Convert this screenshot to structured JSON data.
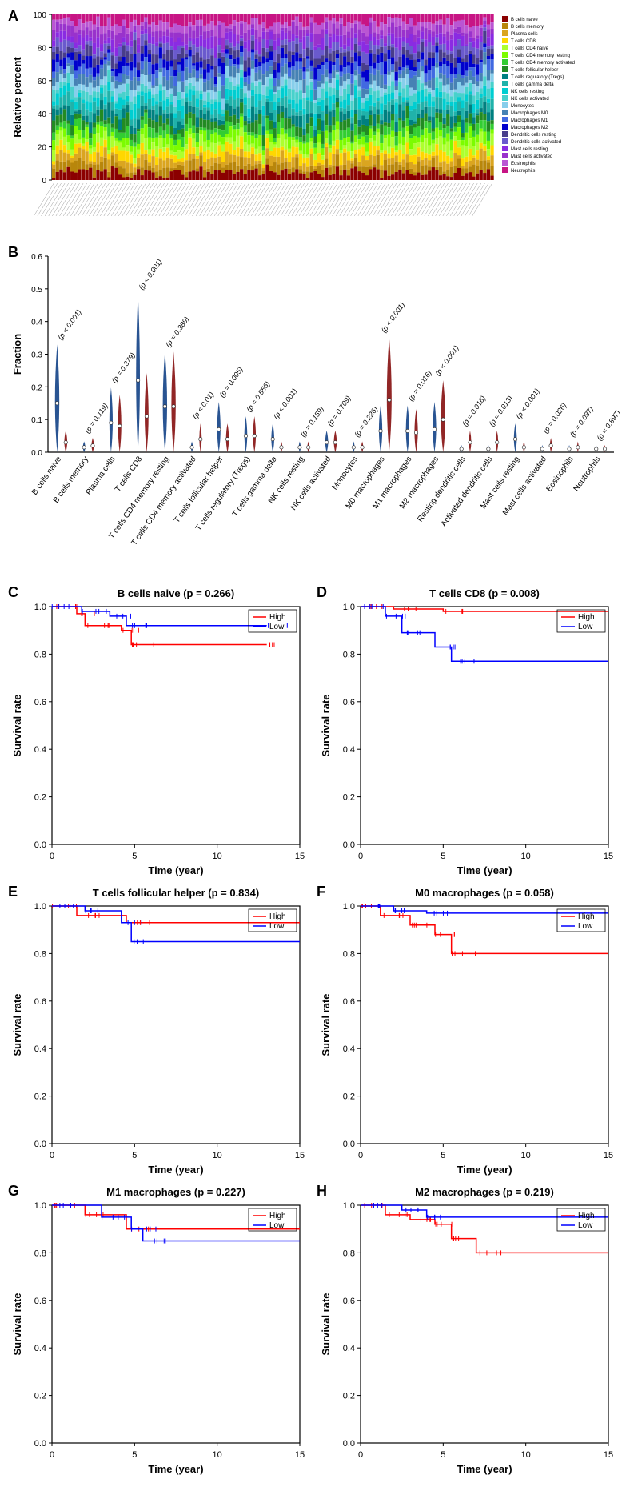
{
  "panelA": {
    "label": "A",
    "type": "stacked-bar",
    "ylabel": "Relative percent",
    "ylim": [
      0,
      100
    ],
    "ytick_step": 20,
    "n_samples": 120,
    "legend": [
      {
        "label": "B cells naive",
        "color": "#8b0000"
      },
      {
        "label": "B cells memory",
        "color": "#b8860b"
      },
      {
        "label": "Plasma cells",
        "color": "#daa520"
      },
      {
        "label": "T cells CD8",
        "color": "#ffd700"
      },
      {
        "label": "T cells CD4 naive",
        "color": "#adff2f"
      },
      {
        "label": "T cells CD4 memory resting",
        "color": "#7cfc00"
      },
      {
        "label": "T cells CD4 memory activated",
        "color": "#32cd32"
      },
      {
        "label": "T cells follicular helper",
        "color": "#228b22"
      },
      {
        "label": "T cells regulatory (Tregs)",
        "color": "#008080"
      },
      {
        "label": "T cells gamma delta",
        "color": "#20b2aa"
      },
      {
        "label": "NK cells resting",
        "color": "#00ced1"
      },
      {
        "label": "NK cells activated",
        "color": "#48d1cc"
      },
      {
        "label": "Monocytes",
        "color": "#87ceeb"
      },
      {
        "label": "Macrophages M0",
        "color": "#4682b4"
      },
      {
        "label": "Macrophages M1",
        "color": "#4169e1"
      },
      {
        "label": "Macrophages M2",
        "color": "#0000cd"
      },
      {
        "label": "Dendritic cells resting",
        "color": "#483d8b"
      },
      {
        "label": "Dendritic cells activated",
        "color": "#6a5acd"
      },
      {
        "label": "Mast cells resting",
        "color": "#8a2be2"
      },
      {
        "label": "Mast cells activated",
        "color": "#9932cc"
      },
      {
        "label": "Eosinophils",
        "color": "#ba55d3"
      },
      {
        "label": "Neutrophils",
        "color": "#c71585"
      }
    ],
    "label_fontsize": 6,
    "tick_fontsize": 10,
    "ylabel_fontsize": 13
  },
  "panelB": {
    "label": "B",
    "type": "violin",
    "ylabel": "Fraction",
    "ylim": [
      0,
      0.6
    ],
    "yticks": [
      0,
      0.1,
      0.2,
      0.3,
      0.4,
      0.5,
      0.6
    ],
    "colors": {
      "group1": "#1e4b8c",
      "group2": "#8b1a1a"
    },
    "items": [
      {
        "name": "B cells naive",
        "p": "< 0.001",
        "m1": 0.15,
        "m2": 0.03,
        "w1": 18,
        "w2": 12
      },
      {
        "name": "B cells memory",
        "p": "= 0.119",
        "m1": 0.015,
        "m2": 0.02,
        "w1": 10,
        "w2": 10
      },
      {
        "name": "Plasma cells",
        "p": "= 0.379",
        "m1": 0.09,
        "m2": 0.08,
        "w1": 14,
        "w2": 14
      },
      {
        "name": "T cells CD8",
        "p": "< 0.001",
        "m1": 0.22,
        "m2": 0.11,
        "w1": 16,
        "w2": 16
      },
      {
        "name": "T cells CD4 memory resting",
        "p": "= 0.389",
        "m1": 0.14,
        "m2": 0.14,
        "w1": 18,
        "w2": 18
      },
      {
        "name": "T cells CD4 memory activated",
        "p": "< 0.01",
        "m1": 0.015,
        "m2": 0.04,
        "w1": 8,
        "w2": 10
      },
      {
        "name": "T cells follicular helper",
        "p": "= 0.005",
        "m1": 0.07,
        "m2": 0.04,
        "w1": 14,
        "w2": 12
      },
      {
        "name": "T cells regulatory (Tregs)",
        "p": "= 0.556",
        "m1": 0.05,
        "m2": 0.05,
        "w1": 12,
        "w2": 12
      },
      {
        "name": "T cells gamma delta",
        "p": "< 0.001",
        "m1": 0.04,
        "m2": 0.015,
        "w1": 12,
        "w2": 8
      },
      {
        "name": "NK cells resting",
        "p": "= 0.159",
        "m1": 0.015,
        "m2": 0.015,
        "w1": 8,
        "w2": 8
      },
      {
        "name": "NK cells activated",
        "p": "= 0.709",
        "m1": 0.03,
        "m2": 0.03,
        "w1": 12,
        "w2": 12
      },
      {
        "name": "Monocytes",
        "p": "= 0.226",
        "m1": 0.015,
        "m2": 0.015,
        "w1": 8,
        "w2": 8
      },
      {
        "name": "M0 macrophages",
        "p": "< 0.001",
        "m1": 0.065,
        "m2": 0.16,
        "w1": 14,
        "w2": 20
      },
      {
        "name": "M1 macrophages",
        "p": "= 0.016",
        "m1": 0.065,
        "m2": 0.06,
        "w1": 14,
        "w2": 14
      },
      {
        "name": "M2 macrophages",
        "p": "< 0.001",
        "m1": 0.07,
        "m2": 0.1,
        "w1": 14,
        "w2": 18
      },
      {
        "name": "Resting dendritic cells",
        "p": "= 0.016",
        "m1": 0.01,
        "m2": 0.03,
        "w1": 6,
        "w2": 10
      },
      {
        "name": "Activated dendritic cells",
        "p": "= 0.013",
        "m1": 0.01,
        "m2": 0.03,
        "w1": 6,
        "w2": 10
      },
      {
        "name": "Mast cells resting",
        "p": "< 0.001",
        "m1": 0.04,
        "m2": 0.015,
        "w1": 12,
        "w2": 8
      },
      {
        "name": "Mast cells activated",
        "p": "= 0.026",
        "m1": 0.01,
        "m2": 0.02,
        "w1": 6,
        "w2": 8
      },
      {
        "name": "Eosinophils",
        "p": "= 0.037",
        "m1": 0.01,
        "m2": 0.015,
        "w1": 6,
        "w2": 6
      },
      {
        "name": "Neutrophils",
        "p": "= 0.897",
        "m1": 0.01,
        "m2": 0.01,
        "w1": 6,
        "w2": 6
      }
    ],
    "label_fontsize": 10,
    "ylabel_fontsize": 13,
    "pval_fontsize": 9
  },
  "survivalCommon": {
    "xlabel": "Time (year)",
    "ylabel": "Survival rate",
    "xlim": [
      0,
      15
    ],
    "ylim": [
      0,
      1.0
    ],
    "xticks": [
      0,
      5,
      10,
      15
    ],
    "yticks": [
      0.0,
      0.2,
      0.4,
      0.6,
      0.8,
      1.0
    ],
    "legend": [
      {
        "label": "High",
        "color": "#ff0000"
      },
      {
        "label": "Low",
        "color": "#0000ff"
      }
    ],
    "title_fontsize": 13,
    "label_fontsize": 13,
    "tick_fontsize": 11
  },
  "panelC": {
    "label": "C",
    "title": "B cells naive (p = 0.266)",
    "high": [
      [
        0,
        1.0
      ],
      [
        1.5,
        0.97
      ],
      [
        2.0,
        0.92
      ],
      [
        4.2,
        0.9
      ],
      [
        4.8,
        0.84
      ],
      [
        13,
        0.84
      ]
    ],
    "low": [
      [
        0,
        1.0
      ],
      [
        1.8,
        0.98
      ],
      [
        3.5,
        0.96
      ],
      [
        4.5,
        0.92
      ],
      [
        13,
        0.92
      ]
    ]
  },
  "panelD": {
    "label": "D",
    "title": "T cells CD8 (p = 0.008)",
    "high": [
      [
        0,
        1.0
      ],
      [
        2,
        0.99
      ],
      [
        5,
        0.98
      ],
      [
        15,
        0.98
      ]
    ],
    "low": [
      [
        0,
        1.0
      ],
      [
        1.5,
        0.96
      ],
      [
        2.5,
        0.89
      ],
      [
        4.5,
        0.83
      ],
      [
        5.5,
        0.77
      ],
      [
        15,
        0.77
      ]
    ]
  },
  "panelE": {
    "label": "E",
    "title": "T cells follicular helper (p = 0.834)",
    "high": [
      [
        0,
        1.0
      ],
      [
        1.5,
        0.96
      ],
      [
        4.5,
        0.93
      ],
      [
        15,
        0.93
      ]
    ],
    "low": [
      [
        0,
        1.0
      ],
      [
        2,
        0.98
      ],
      [
        4.2,
        0.93
      ],
      [
        4.8,
        0.85
      ],
      [
        15,
        0.85
      ]
    ]
  },
  "panelF": {
    "label": "F",
    "title": "M0 macrophages (p = 0.058)",
    "high": [
      [
        0,
        1.0
      ],
      [
        1.2,
        0.96
      ],
      [
        3.0,
        0.92
      ],
      [
        4.5,
        0.88
      ],
      [
        5.5,
        0.8
      ],
      [
        15,
        0.8
      ]
    ],
    "low": [
      [
        0,
        1.0
      ],
      [
        2,
        0.98
      ],
      [
        4,
        0.97
      ],
      [
        15,
        0.97
      ]
    ]
  },
  "panelG": {
    "label": "G",
    "title": "M1 macrophages (p = 0.227)",
    "high": [
      [
        0,
        1.0
      ],
      [
        2,
        0.96
      ],
      [
        4.5,
        0.9
      ],
      [
        15,
        0.9
      ]
    ],
    "low": [
      [
        0,
        1.0
      ],
      [
        3,
        0.95
      ],
      [
        4.8,
        0.9
      ],
      [
        5.5,
        0.85
      ],
      [
        15,
        0.85
      ]
    ]
  },
  "panelH": {
    "label": "H",
    "title": "M2 macrophages (p = 0.219)",
    "high": [
      [
        0,
        1.0
      ],
      [
        1.5,
        0.96
      ],
      [
        3,
        0.94
      ],
      [
        4.5,
        0.92
      ],
      [
        5.5,
        0.86
      ],
      [
        7,
        0.8
      ],
      [
        15,
        0.8
      ]
    ],
    "low": [
      [
        0,
        1.0
      ],
      [
        2.5,
        0.98
      ],
      [
        4,
        0.95
      ],
      [
        15,
        0.95
      ]
    ]
  }
}
